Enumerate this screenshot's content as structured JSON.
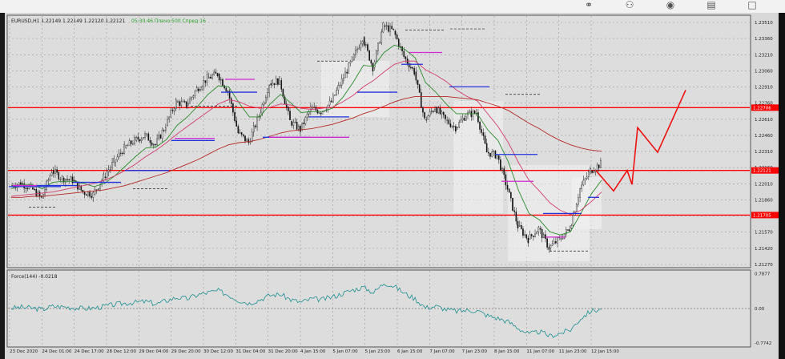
{
  "topbar": {
    "icons": [
      "link-icon",
      "add-user-icon",
      "eye-icon",
      "trash-icon",
      "square-icon"
    ]
  },
  "chart_data": {
    "type": "candlestick",
    "symbol_header": "EURUSD,H1  1.22149 1.22149 1.22120 1.22121",
    "timer_text": "05:30:46 Плечо:500 Спред:16",
    "x_ticks": [
      "23 Dec 2020",
      "24 Dec 01:00",
      "24 Dec 17:00",
      "28 Dec 12:00",
      "29 Dec 04:00",
      "29 Dec 20:00",
      "30 Dec 12:00",
      "31 Dec 04:00",
      "31 Dec 20:00",
      "4 Jan 15:00",
      "5 Jan 07:00",
      "5 Jan 23:00",
      "6 Jan 15:00",
      "7 Jan 07:00",
      "7 Jan 23:00",
      "8 Jan 15:00",
      "11 Jan 07:00",
      "11 Jan 23:00",
      "12 Jan 15:00"
    ],
    "y_ticks": [
      "1.23510",
      "1.23360",
      "1.23210",
      "1.23060",
      "1.22910",
      "1.22760",
      "1.22610",
      "1.22460",
      "1.22310",
      "1.22160",
      "1.22010",
      "1.21860",
      "1.21720",
      "1.21570",
      "1.21420",
      "1.21270"
    ],
    "ylim": [
      1.2123,
      1.2356
    ],
    "price_labels": [
      "1.22706",
      "1.22121",
      "1.21705"
    ],
    "levels": [
      {
        "price": 1.22706,
        "color": "#ff0000"
      },
      {
        "price": 1.22121,
        "color": "#ff0000"
      },
      {
        "price": 1.21705,
        "color": "#ff0000"
      }
    ],
    "close_path": [
      1.2198,
      1.22,
      1.2196,
      1.2186,
      1.2212,
      1.2205,
      1.2203,
      1.2192,
      1.219,
      1.2206,
      1.222,
      1.2233,
      1.224,
      1.2245,
      1.2236,
      1.2254,
      1.2276,
      1.2273,
      1.2288,
      1.2298,
      1.2302,
      1.2286,
      1.2247,
      1.2238,
      1.2263,
      1.2293,
      1.2296,
      1.2258,
      1.225,
      1.227,
      1.2267,
      1.2276,
      1.2296,
      1.2315,
      1.2336,
      1.2308,
      1.2347,
      1.2342,
      1.2318,
      1.2304,
      1.2259,
      1.2271,
      1.2259,
      1.2252,
      1.2264,
      1.2266,
      1.2229,
      1.2226,
      1.2195,
      1.216,
      1.2148,
      1.2158,
      1.214,
      1.2148,
      1.2158,
      1.2195,
      1.2212,
      1.2218
    ],
    "moving_averages": [
      {
        "color": "#2e8b2e",
        "values": [
          1.2195,
          1.2199,
          1.2199,
          1.2195,
          1.2201,
          1.2202,
          1.2202,
          1.22,
          1.2197,
          1.22,
          1.2207,
          1.2216,
          1.2225,
          1.2233,
          1.2234,
          1.2241,
          1.2254,
          1.2262,
          1.2272,
          1.2283,
          1.2291,
          1.229,
          1.2275,
          1.2262,
          1.2262,
          1.2274,
          1.2283,
          1.2275,
          1.2266,
          1.2267,
          1.2267,
          1.227,
          1.228,
          1.2294,
          1.231,
          1.2309,
          1.2322,
          1.2329,
          1.2325,
          1.2317,
          1.2294,
          1.2285,
          1.2274,
          1.2265,
          1.2265,
          1.2265,
          1.225,
          1.224,
          1.222,
          1.2193,
          1.2172,
          1.2166,
          1.2155,
          1.2152,
          1.2155,
          1.2172,
          1.219,
          1.2203
        ]
      },
      {
        "color": "#d23c6e",
        "values": [
          1.2188,
          1.2189,
          1.219,
          1.2191,
          1.2192,
          1.2194,
          1.2196,
          1.2198,
          1.22,
          1.2203,
          1.2207,
          1.2212,
          1.2218,
          1.2225,
          1.2231,
          1.2238,
          1.2246,
          1.2253,
          1.226,
          1.2267,
          1.2274,
          1.2278,
          1.2276,
          1.2272,
          1.227,
          1.2271,
          1.2274,
          1.2273,
          1.227,
          1.2269,
          1.227,
          1.2271,
          1.2276,
          1.2282,
          1.229,
          1.2296,
          1.2304,
          1.2311,
          1.2314,
          1.2314,
          1.2306,
          1.2301,
          1.2295,
          1.2287,
          1.2281,
          1.2277,
          1.2265,
          1.2253,
          1.2238,
          1.2219,
          1.2203,
          1.2193,
          1.2182,
          1.2175,
          1.2171,
          1.2175,
          1.2183,
          1.2192
        ]
      },
      {
        "color": "#b42828",
        "values": [
          1.2187,
          1.2187,
          1.2188,
          1.2188,
          1.2189,
          1.219,
          1.2191,
          1.2192,
          1.2193,
          1.2194,
          1.2196,
          1.2198,
          1.2201,
          1.2204,
          1.2207,
          1.221,
          1.2214,
          1.2218,
          1.2222,
          1.2227,
          1.2232,
          1.2236,
          1.2238,
          1.2239,
          1.2241,
          1.2244,
          1.2247,
          1.2249,
          1.225,
          1.2251,
          1.2253,
          1.2255,
          1.2258,
          1.2261,
          1.2265,
          1.2268,
          1.2272,
          1.2276,
          1.2279,
          1.2281,
          1.2281,
          1.2281,
          1.2281,
          1.228,
          1.2279,
          1.2278,
          1.2275,
          1.2272,
          1.2268,
          1.2262,
          1.2256,
          1.2251,
          1.2245,
          1.224,
          1.2236,
          1.2233,
          1.2231,
          1.223
        ]
      }
    ],
    "forecast_path": [
      1.2212,
      1.219,
      1.221,
      1.2195,
      1.2224,
      1.2253,
      1.223,
      1.2285
    ],
    "indicator": {
      "label": "Force(144) -0.0218",
      "y_ticks": [
        "0.7877",
        "0.00",
        "-0.7742"
      ],
      "ylim": [
        -0.85,
        0.85
      ],
      "values": [
        0.01,
        0.03,
        0.01,
        -0.02,
        0.05,
        0.04,
        0.02,
        0.0,
        0.01,
        0.05,
        0.09,
        0.12,
        0.14,
        0.16,
        0.1,
        0.18,
        0.25,
        0.22,
        0.31,
        0.36,
        0.4,
        0.3,
        0.18,
        0.12,
        0.2,
        0.3,
        0.32,
        0.2,
        0.14,
        0.22,
        0.2,
        0.26,
        0.34,
        0.42,
        0.48,
        0.36,
        0.58,
        0.5,
        0.34,
        0.22,
        0.02,
        0.05,
        -0.02,
        -0.06,
        -0.04,
        -0.05,
        -0.16,
        -0.22,
        -0.3,
        -0.45,
        -0.58,
        -0.52,
        -0.62,
        -0.56,
        -0.48,
        -0.22,
        -0.05,
        -0.0218
      ]
    }
  }
}
